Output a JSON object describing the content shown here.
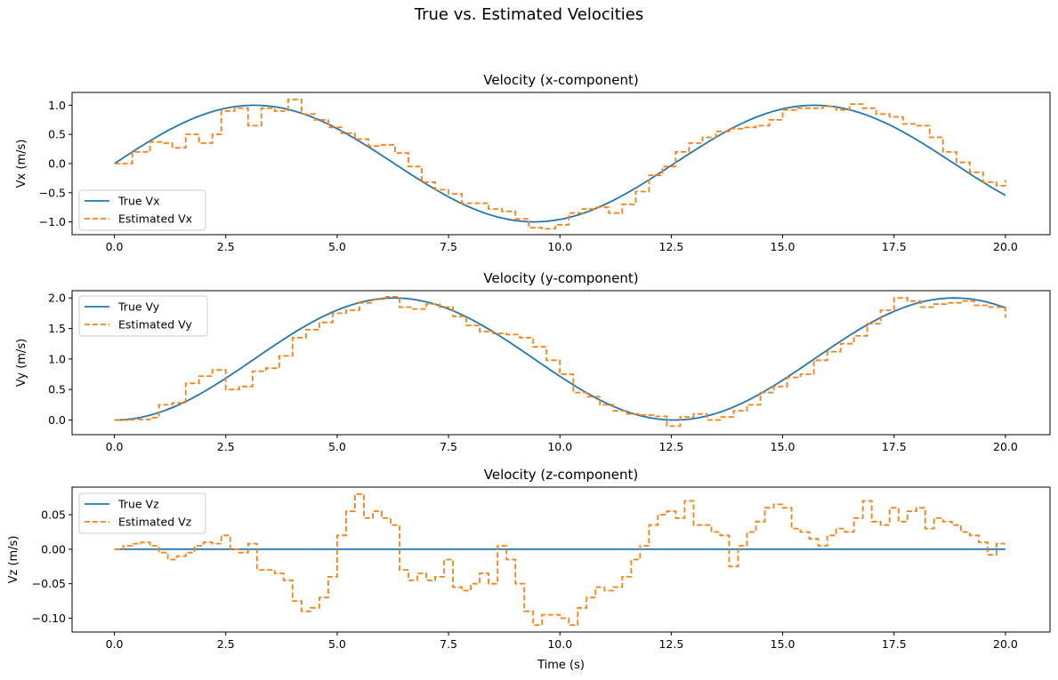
{
  "figure": {
    "suptitle": "True vs. Estimated Velocities"
  },
  "colors": {
    "true": "#1f77b4",
    "estimated": "#ff7f0e"
  },
  "chart_data": [
    {
      "type": "line",
      "title": "Velocity (x-component)",
      "xlabel": "",
      "ylabel": "Vx (m/s)",
      "xlim": [
        -0.95,
        21.0
      ],
      "ylim": [
        -1.22,
        1.22
      ],
      "xticks": [
        0,
        2.5,
        5,
        7.5,
        10,
        12.5,
        15,
        17.5,
        20
      ],
      "xtick_labels": [
        "0.0",
        "2.5",
        "5.0",
        "7.5",
        "10.0",
        "12.5",
        "15.0",
        "17.5",
        "20.0"
      ],
      "yticks": [
        1.0,
        0.5,
        0.0,
        -0.5,
        -1.0
      ],
      "ytick_labels": [
        "1.0",
        "0.5",
        "0.0",
        "−0.5",
        "−1.0"
      ],
      "legend": "lower-left",
      "series": [
        {
          "name": "True Vx",
          "style": "solid",
          "func": "sin",
          "amp": 1.0,
          "period": 12.566,
          "x_range": [
            0,
            20
          ]
        },
        {
          "name": "Estimated Vx",
          "style": "dashed",
          "x": [
            0,
            0.4,
            0.8,
            1.1,
            1.3,
            1.6,
            1.9,
            2.2,
            2.4,
            2.7,
            3.0,
            3.3,
            3.6,
            3.9,
            4.2,
            4.5,
            4.8,
            5.1,
            5.4,
            5.7,
            6.0,
            6.3,
            6.6,
            6.9,
            7.2,
            7.5,
            7.8,
            8.1,
            8.4,
            8.7,
            9.0,
            9.3,
            9.6,
            9.9,
            10.2,
            10.5,
            10.8,
            11.1,
            11.4,
            11.7,
            12.0,
            12.3,
            12.6,
            12.9,
            13.2,
            13.5,
            13.8,
            14.1,
            14.4,
            14.7,
            15.0,
            15.3,
            15.6,
            15.9,
            16.2,
            16.5,
            16.8,
            17.1,
            17.4,
            17.7,
            18.0,
            18.3,
            18.6,
            18.9,
            19.2,
            19.5,
            19.8,
            20.0
          ],
          "values": [
            0.0,
            0.2,
            0.37,
            0.35,
            0.27,
            0.5,
            0.35,
            0.5,
            0.9,
            0.95,
            0.65,
            0.95,
            0.9,
            1.1,
            0.85,
            0.75,
            0.62,
            0.52,
            0.42,
            0.3,
            0.32,
            0.18,
            -0.05,
            -0.32,
            -0.45,
            -0.52,
            -0.68,
            -0.68,
            -0.78,
            -0.82,
            -0.95,
            -1.1,
            -1.12,
            -1.05,
            -0.85,
            -0.78,
            -0.75,
            -0.85,
            -0.7,
            -0.48,
            -0.2,
            -0.05,
            0.2,
            0.35,
            0.45,
            0.55,
            0.6,
            0.62,
            0.65,
            0.75,
            0.92,
            0.95,
            0.95,
            0.98,
            0.92,
            1.02,
            0.95,
            0.85,
            0.8,
            0.68,
            0.65,
            0.45,
            0.2,
            0.02,
            -0.15,
            -0.32,
            -0.38,
            -0.28
          ]
        }
      ]
    },
    {
      "type": "line",
      "title": "Velocity (y-component)",
      "xlabel": "",
      "ylabel": "Vy (m/s)",
      "xlim": [
        -0.95,
        21.0
      ],
      "ylim": [
        -0.24,
        2.12
      ],
      "xticks": [
        0,
        2.5,
        5,
        7.5,
        10,
        12.5,
        15,
        17.5,
        20
      ],
      "xtick_labels": [
        "0.0",
        "2.5",
        "5.0",
        "7.5",
        "10.0",
        "12.5",
        "15.0",
        "17.5",
        "20.0"
      ],
      "yticks": [
        2.0,
        1.5,
        1.0,
        0.5,
        0.0
      ],
      "ytick_labels": [
        "2.0",
        "1.5",
        "1.0",
        "0.5",
        "0.0"
      ],
      "legend": "upper-left",
      "series": [
        {
          "name": "True Vy",
          "style": "solid",
          "func": "1-cos",
          "amp": 1.0,
          "period": 12.566,
          "x_range": [
            0,
            20
          ]
        },
        {
          "name": "Estimated Vy",
          "style": "dashed",
          "x": [
            0,
            0.4,
            0.8,
            1.0,
            1.3,
            1.6,
            1.9,
            2.2,
            2.5,
            2.8,
            3.1,
            3.4,
            3.7,
            4.0,
            4.3,
            4.6,
            4.9,
            5.2,
            5.5,
            5.8,
            6.1,
            6.4,
            6.7,
            7.0,
            7.3,
            7.6,
            7.9,
            8.2,
            8.5,
            8.8,
            9.1,
            9.4,
            9.7,
            10.0,
            10.3,
            10.6,
            10.9,
            11.2,
            11.5,
            11.8,
            12.1,
            12.4,
            12.7,
            13.0,
            13.3,
            13.6,
            13.9,
            14.2,
            14.5,
            14.8,
            15.1,
            15.4,
            15.7,
            16.0,
            16.3,
            16.6,
            16.9,
            17.2,
            17.5,
            17.8,
            18.1,
            18.4,
            18.7,
            19.0,
            19.3,
            19.6,
            20.0
          ],
          "values": [
            0.0,
            0.01,
            0.04,
            0.25,
            0.28,
            0.6,
            0.72,
            0.82,
            0.5,
            0.55,
            0.8,
            0.85,
            1.05,
            1.35,
            1.48,
            1.6,
            1.75,
            1.8,
            1.92,
            1.98,
            2.02,
            1.85,
            1.82,
            1.9,
            1.85,
            1.7,
            1.55,
            1.45,
            1.42,
            1.4,
            1.35,
            1.2,
            0.98,
            0.75,
            0.45,
            0.38,
            0.25,
            0.15,
            0.1,
            0.08,
            0.06,
            -0.1,
            0.05,
            0.1,
            0.0,
            0.05,
            0.15,
            0.25,
            0.45,
            0.55,
            0.7,
            0.75,
            0.98,
            1.12,
            1.25,
            1.38,
            1.58,
            1.8,
            2.0,
            1.95,
            1.85,
            1.9,
            1.92,
            1.95,
            1.88,
            1.85,
            1.68
          ]
        }
      ]
    },
    {
      "type": "line",
      "title": "Velocity (z-component)",
      "xlabel": "Time (s)",
      "ylabel": "Vz (m/s)",
      "xlim": [
        -0.95,
        21.0
      ],
      "ylim": [
        -0.12,
        0.09
      ],
      "xticks": [
        0,
        2.5,
        5,
        7.5,
        10,
        12.5,
        15,
        17.5,
        20
      ],
      "xtick_labels": [
        "0.0",
        "2.5",
        "5.0",
        "7.5",
        "10.0",
        "12.5",
        "15.0",
        "17.5",
        "20.0"
      ],
      "yticks": [
        0.05,
        0.0,
        -0.05,
        -0.1
      ],
      "ytick_labels": [
        "0.05",
        "0.00",
        "−0.05",
        "−0.10"
      ],
      "legend": "upper-left",
      "series": [
        {
          "name": "True Vz",
          "style": "solid",
          "x": [
            0,
            20
          ],
          "values": [
            0,
            0
          ]
        },
        {
          "name": "Estimated Vz",
          "style": "dashed",
          "x": [
            0,
            0.2,
            0.4,
            0.6,
            0.8,
            1.0,
            1.2,
            1.4,
            1.6,
            1.8,
            2.0,
            2.2,
            2.4,
            2.6,
            2.8,
            3.0,
            3.2,
            3.4,
            3.6,
            3.8,
            4.0,
            4.2,
            4.4,
            4.6,
            4.8,
            5.0,
            5.2,
            5.4,
            5.6,
            5.8,
            6.0,
            6.2,
            6.4,
            6.6,
            6.8,
            7.0,
            7.2,
            7.4,
            7.6,
            7.8,
            8.0,
            8.2,
            8.4,
            8.6,
            8.8,
            9.0,
            9.2,
            9.4,
            9.6,
            9.8,
            10.0,
            10.2,
            10.4,
            10.6,
            10.8,
            11.0,
            11.2,
            11.4,
            11.6,
            11.8,
            12.0,
            12.2,
            12.4,
            12.6,
            12.8,
            13.0,
            13.2,
            13.4,
            13.6,
            13.8,
            14.0,
            14.2,
            14.4,
            14.6,
            14.8,
            15.0,
            15.2,
            15.4,
            15.6,
            15.8,
            16.0,
            16.2,
            16.4,
            16.6,
            16.8,
            17.0,
            17.2,
            17.4,
            17.6,
            17.8,
            18.0,
            18.2,
            18.4,
            18.6,
            18.8,
            19.0,
            19.2,
            19.4,
            19.6,
            19.8,
            20.0
          ],
          "values": [
            0.0,
            0.005,
            0.008,
            0.01,
            0.005,
            -0.005,
            -0.015,
            -0.01,
            -0.005,
            0.005,
            0.01,
            0.008,
            0.02,
            0.0,
            -0.005,
            0.008,
            -0.03,
            -0.03,
            -0.035,
            -0.045,
            -0.075,
            -0.09,
            -0.085,
            -0.07,
            -0.04,
            0.02,
            0.055,
            0.08,
            0.045,
            0.055,
            0.045,
            0.035,
            -0.03,
            -0.045,
            -0.035,
            -0.045,
            -0.04,
            -0.015,
            -0.055,
            -0.06,
            -0.05,
            -0.035,
            -0.05,
            0.005,
            -0.015,
            -0.05,
            -0.09,
            -0.11,
            -0.095,
            -0.095,
            -0.1,
            -0.11,
            -0.085,
            -0.07,
            -0.055,
            -0.06,
            -0.055,
            -0.04,
            -0.015,
            0.005,
            0.035,
            0.05,
            0.055,
            0.045,
            0.07,
            0.035,
            0.035,
            0.025,
            0.02,
            -0.025,
            0.005,
            0.025,
            0.04,
            0.06,
            0.065,
            0.06,
            0.03,
            0.025,
            0.015,
            0.005,
            0.02,
            0.03,
            0.025,
            0.045,
            0.07,
            0.04,
            0.035,
            0.06,
            0.04,
            0.055,
            0.06,
            0.03,
            0.045,
            0.04,
            0.035,
            0.025,
            0.02,
            0.01,
            -0.008,
            0.008,
            0.008
          ]
        }
      ]
    }
  ]
}
